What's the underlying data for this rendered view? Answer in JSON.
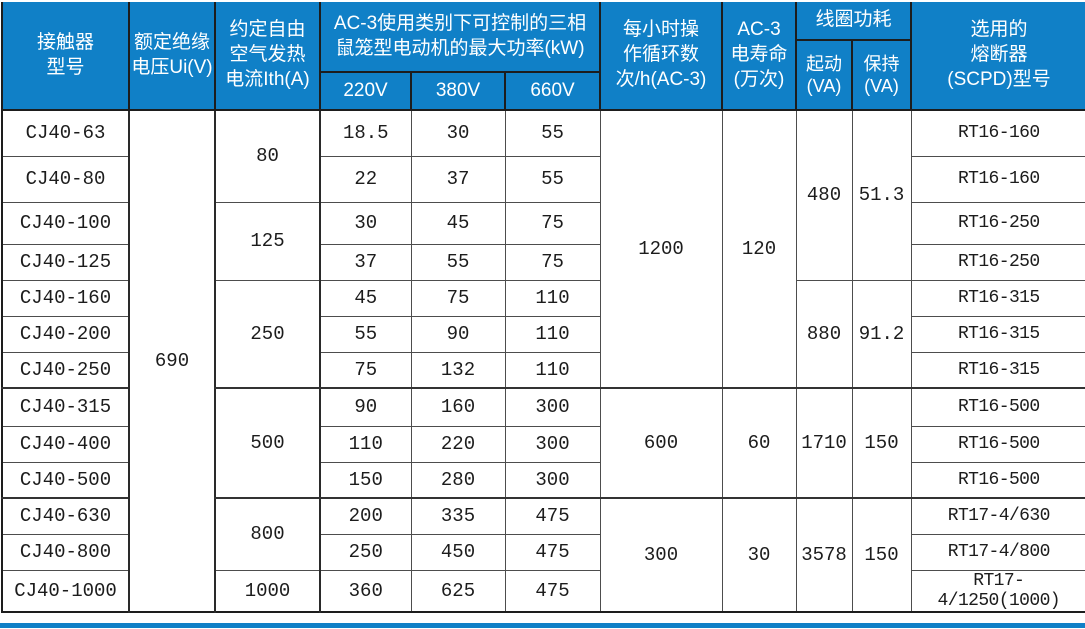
{
  "table": {
    "header": {
      "model": "接触器\n型号",
      "rated_voltage": "额定绝缘\n电压Ui(V)",
      "thermal_current": "约定自由\n空气发热\n电流Ith(A)",
      "ac3_power": "AC-3使用类别下可控制的三相\n鼠笼型电动机的最大功率(kW)",
      "voltages": [
        "220V",
        "380V",
        "660V"
      ],
      "cycles": "每小时操\n作循环数\n次/h(AC-3)",
      "life": "AC-3\n电寿命\n(万次)",
      "coil": "线圈功耗",
      "coil_pickup": "起动\n(VA)",
      "coil_hold": "保持\n(VA)",
      "fuse": "选用的\n熔断器\n(SCPD)型号"
    },
    "rated_voltage_value": "690",
    "rows": [
      {
        "model": "CJ40-63",
        "p220": "18.5",
        "p380": "30",
        "p660": "55",
        "fuse": "RT16-160"
      },
      {
        "model": "CJ40-80",
        "p220": "22",
        "p380": "37",
        "p660": "55",
        "fuse": "RT16-160"
      },
      {
        "model": "CJ40-100",
        "p220": "30",
        "p380": "45",
        "p660": "75",
        "fuse": "RT16-250"
      },
      {
        "model": "CJ40-125",
        "p220": "37",
        "p380": "55",
        "p660": "75",
        "fuse": "RT16-250"
      },
      {
        "model": "CJ40-160",
        "p220": "45",
        "p380": "75",
        "p660": "110",
        "fuse": "RT16-315"
      },
      {
        "model": "CJ40-200",
        "p220": "55",
        "p380": "90",
        "p660": "110",
        "fuse": "RT16-315"
      },
      {
        "model": "CJ40-250",
        "p220": "75",
        "p380": "132",
        "p660": "110",
        "fuse": "RT16-315"
      },
      {
        "model": "CJ40-315",
        "p220": "90",
        "p380": "160",
        "p660": "300",
        "fuse": "RT16-500"
      },
      {
        "model": "CJ40-400",
        "p220": "110",
        "p380": "220",
        "p660": "300",
        "fuse": "RT16-500"
      },
      {
        "model": "CJ40-500",
        "p220": "150",
        "p380": "280",
        "p660": "300",
        "fuse": "RT16-500"
      },
      {
        "model": "CJ40-630",
        "p220": "200",
        "p380": "335",
        "p660": "475",
        "fuse": "RT17-4/630"
      },
      {
        "model": "CJ40-800",
        "p220": "250",
        "p380": "450",
        "p660": "475",
        "fuse": "RT17-4/800"
      },
      {
        "model": "CJ40-1000",
        "p220": "360",
        "p380": "625",
        "p660": "475",
        "fuse": "RT17-4/1250(1000)"
      }
    ],
    "ith_groups": [
      {
        "start": 0,
        "span": 2,
        "value": "80"
      },
      {
        "start": 2,
        "span": 2,
        "value": "125"
      },
      {
        "start": 4,
        "span": 3,
        "value": "250"
      },
      {
        "start": 7,
        "span": 3,
        "value": "500"
      },
      {
        "start": 10,
        "span": 2,
        "value": "800"
      },
      {
        "start": 12,
        "span": 1,
        "value": "1000"
      }
    ],
    "ops_groups": [
      {
        "start": 0,
        "span": 7,
        "cycles": "1200",
        "life": "120"
      },
      {
        "start": 7,
        "span": 3,
        "cycles": "600",
        "life": "60"
      },
      {
        "start": 10,
        "span": 3,
        "cycles": "300",
        "life": "30"
      }
    ],
    "coil_groups": [
      {
        "start": 0,
        "span": 4,
        "pickup": "480",
        "hold": "51.3"
      },
      {
        "start": 4,
        "span": 3,
        "pickup": "880",
        "hold": "91.2"
      },
      {
        "start": 7,
        "span": 3,
        "pickup": "1710",
        "hold": "150"
      },
      {
        "start": 10,
        "span": 3,
        "pickup": "3578",
        "hold": "150"
      }
    ],
    "group_end_rows": [
      6,
      9
    ]
  },
  "colors": {
    "header_bg": "#1080C7",
    "header_text": "#ffffff",
    "body_text": "#1c1c1c",
    "grid_line": "#4d4d4d",
    "frame": "#1d1d1d"
  }
}
